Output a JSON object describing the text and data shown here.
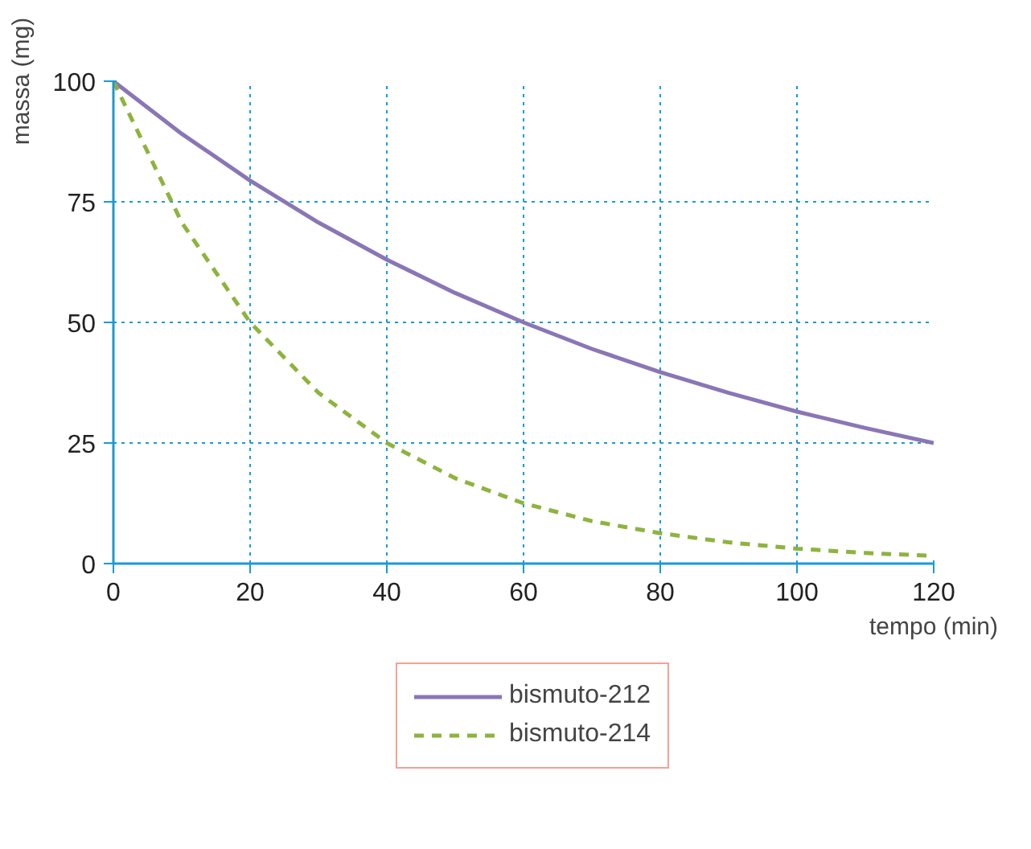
{
  "chart_data": {
    "type": "line",
    "xlabel": "tempo (min)",
    "ylabel": "massa (mg)",
    "x": [
      0,
      10,
      20,
      30,
      40,
      50,
      60,
      70,
      80,
      90,
      100,
      110,
      120
    ],
    "series": [
      {
        "name": "bismuto-212",
        "color": "#8a76b6",
        "line_style": "solid",
        "values": [
          100,
          89.1,
          79.4,
          70.7,
          63.0,
          56.1,
          50,
          44.5,
          39.7,
          35.4,
          31.5,
          28.1,
          25
        ]
      },
      {
        "name": "bismuto-214",
        "color": "#8db43e",
        "line_style": "dashed",
        "values": [
          100,
          70.7,
          50,
          35.4,
          25,
          17.7,
          12.5,
          8.8,
          6.3,
          4.4,
          3.1,
          2.2,
          1.6
        ]
      }
    ],
    "xlim": [
      0,
      120
    ],
    "ylim": [
      0,
      100
    ],
    "xticks": [
      0,
      20,
      40,
      60,
      80,
      100,
      120
    ],
    "yticks": [
      0,
      25,
      50,
      75,
      100
    ],
    "grid": true,
    "legend": "bottom",
    "marker": "none"
  }
}
